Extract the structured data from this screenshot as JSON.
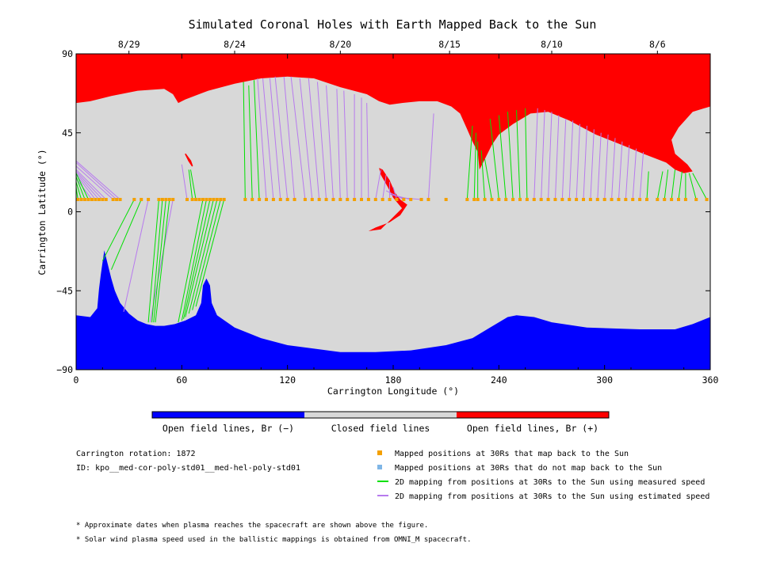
{
  "chart_data": {
    "type": "scatter",
    "title": "Simulated Coronal Holes with Earth Mapped Back to the Sun",
    "xlabel": "Carrington Longitude (°)",
    "ylabel": "Carrington Latitude (°)",
    "xlim": [
      0,
      360
    ],
    "ylim": [
      -90,
      90
    ],
    "x_ticks": [
      0,
      60,
      120,
      180,
      240,
      300,
      360
    ],
    "y_ticks": [
      -90,
      -45,
      0,
      45,
      90
    ],
    "x_tick_labels": [
      "0",
      "60",
      "120",
      "180",
      "240",
      "300",
      "360"
    ],
    "y_tick_labels": [
      "−90",
      "−45",
      "0",
      "45",
      "90"
    ],
    "date_axis": [
      {
        "label": "8/29",
        "lon": 30
      },
      {
        "label": "8/24",
        "lon": 90
      },
      {
        "label": "8/20",
        "lon": 150
      },
      {
        "label": "8/15",
        "lon": 212
      },
      {
        "label": "8/10",
        "lon": 270
      },
      {
        "label": "8/6",
        "lon": 330
      }
    ],
    "colors": {
      "open_positive": "#ff0000",
      "open_negative": "#0000ff",
      "closed": "#d8d8d8",
      "mapped_point": "#f4a000",
      "unmapped_point": "#7fb6e6",
      "measured_speed": "#00e000",
      "estimated_speed": "#b77aee"
    },
    "regions": {
      "north_open_positive_boundary": [
        [
          0,
          62
        ],
        [
          8,
          63
        ],
        [
          20,
          66
        ],
        [
          35,
          69
        ],
        [
          50,
          70
        ],
        [
          55,
          67
        ],
        [
          58,
          62
        ],
        [
          62,
          64
        ],
        [
          75,
          69
        ],
        [
          90,
          73
        ],
        [
          105,
          76
        ],
        [
          120,
          77
        ],
        [
          135,
          76
        ],
        [
          150,
          71
        ],
        [
          165,
          67
        ],
        [
          172,
          63
        ],
        [
          178,
          61
        ],
        [
          185,
          62
        ],
        [
          195,
          63
        ],
        [
          205,
          63
        ],
        [
          213,
          60
        ],
        [
          218,
          56
        ],
        [
          222,
          47
        ],
        [
          225,
          40
        ],
        [
          228,
          34
        ],
        [
          229,
          24
        ],
        [
          232,
          30
        ],
        [
          236,
          38
        ],
        [
          240,
          44
        ],
        [
          248,
          50
        ],
        [
          258,
          56
        ],
        [
          268,
          57
        ],
        [
          280,
          52
        ],
        [
          295,
          44
        ],
        [
          310,
          38
        ],
        [
          322,
          33
        ],
        [
          335,
          28
        ],
        [
          340,
          24
        ],
        [
          345,
          22
        ],
        [
          350,
          23
        ],
        [
          347,
          27
        ],
        [
          340,
          33
        ],
        [
          338,
          41
        ],
        [
          342,
          48
        ],
        [
          350,
          57
        ],
        [
          360,
          60
        ]
      ],
      "south_open_negative_boundary": [
        [
          0,
          -59
        ],
        [
          8,
          -60
        ],
        [
          12,
          -55
        ],
        [
          13,
          -44
        ],
        [
          14,
          -36
        ],
        [
          15,
          -29
        ],
        [
          16,
          -22
        ],
        [
          18,
          -30
        ],
        [
          20,
          -38
        ],
        [
          22,
          -45
        ],
        [
          25,
          -52
        ],
        [
          30,
          -58
        ],
        [
          35,
          -62
        ],
        [
          40,
          -64
        ],
        [
          45,
          -65
        ],
        [
          50,
          -65
        ],
        [
          56,
          -64
        ],
        [
          62,
          -62
        ],
        [
          68,
          -59
        ],
        [
          71,
          -52
        ],
        [
          72,
          -42
        ],
        [
          74,
          -38
        ],
        [
          76,
          -42
        ],
        [
          77,
          -52
        ],
        [
          80,
          -59
        ],
        [
          90,
          -66
        ],
        [
          105,
          -72
        ],
        [
          120,
          -76
        ],
        [
          150,
          -80
        ],
        [
          170,
          -80
        ],
        [
          190,
          -79
        ],
        [
          210,
          -76
        ],
        [
          225,
          -72
        ],
        [
          235,
          -66
        ],
        [
          245,
          -60
        ],
        [
          250,
          -59
        ],
        [
          260,
          -60
        ],
        [
          270,
          -63
        ],
        [
          290,
          -66
        ],
        [
          320,
          -67
        ],
        [
          340,
          -67
        ],
        [
          350,
          -64
        ],
        [
          360,
          -60
        ]
      ],
      "mid_positive_hole": [
        [
          173,
          -10
        ],
        [
          185,
          2
        ],
        [
          180,
          8
        ],
        [
          177,
          14
        ],
        [
          173,
          21
        ],
        [
          172,
          25
        ],
        [
          174,
          24
        ],
        [
          178,
          18
        ],
        [
          181,
          11
        ],
        [
          184,
          7
        ],
        [
          188,
          4
        ],
        [
          184,
          -2
        ],
        [
          178,
          -6
        ],
        [
          170,
          -9
        ],
        [
          166,
          -11
        ]
      ],
      "small_positive_hole": [
        [
          62,
          33
        ],
        [
          65,
          29
        ],
        [
          66,
          26
        ],
        [
          64,
          29
        ]
      ]
    },
    "series": [
      {
        "name": "Mapped positions at 30Rs that map back to the Sun",
        "lat": 7,
        "lon": [
          1,
          3,
          5,
          7,
          9,
          11,
          13,
          15,
          17,
          21,
          23,
          25,
          33,
          37,
          41,
          47,
          49,
          51,
          53,
          55,
          63,
          66,
          68,
          70,
          72,
          74,
          76,
          78,
          80,
          82,
          84,
          96,
          100,
          104,
          108,
          112,
          116,
          120,
          124,
          130,
          134,
          138,
          142,
          146,
          150,
          154,
          158,
          162,
          166,
          170,
          174,
          178,
          182,
          186,
          190,
          196,
          200,
          210,
          222,
          226,
          228,
          232,
          236,
          240,
          244,
          248,
          252,
          256,
          260,
          264,
          268,
          272,
          276,
          280,
          284,
          288,
          292,
          296,
          300,
          304,
          308,
          312,
          316,
          320,
          324,
          330,
          334,
          338,
          342,
          346,
          352,
          358
        ]
      },
      {
        "name": "2D mapping from positions at 30Rs to the Sun using measured speed",
        "segments": [
          [
            1,
            7,
            0,
            14
          ],
          [
            3,
            7,
            0,
            17
          ],
          [
            5,
            7,
            0,
            20
          ],
          [
            7,
            7,
            0,
            22
          ],
          [
            33,
            7,
            15,
            -28
          ],
          [
            37,
            7,
            20,
            -33
          ],
          [
            47,
            7,
            41,
            -63
          ],
          [
            49,
            7,
            43,
            -63
          ],
          [
            51,
            7,
            44,
            -63
          ],
          [
            53,
            7,
            45,
            -63
          ],
          [
            72,
            7,
            58,
            -63
          ],
          [
            74,
            7,
            60,
            -62
          ],
          [
            76,
            7,
            61,
            -61
          ],
          [
            78,
            7,
            62,
            -60
          ],
          [
            80,
            7,
            64,
            -58
          ],
          [
            82,
            7,
            66,
            -56
          ],
          [
            84,
            7,
            68,
            -54
          ],
          [
            66,
            7,
            64,
            24
          ],
          [
            68,
            7,
            65,
            24
          ],
          [
            96,
            7,
            95,
            74
          ],
          [
            100,
            7,
            98,
            72
          ],
          [
            104,
            7,
            101,
            75
          ],
          [
            222,
            7,
            225,
            49
          ],
          [
            226,
            7,
            227,
            45
          ],
          [
            228,
            7,
            228,
            40
          ],
          [
            232,
            7,
            230,
            35
          ],
          [
            236,
            7,
            232,
            30
          ],
          [
            240,
            7,
            235,
            53
          ],
          [
            244,
            7,
            240,
            55
          ],
          [
            248,
            7,
            245,
            57
          ],
          [
            252,
            7,
            250,
            58
          ],
          [
            256,
            7,
            255,
            59
          ],
          [
            324,
            7,
            325,
            23
          ],
          [
            330,
            7,
            333,
            23
          ],
          [
            334,
            7,
            336,
            24
          ],
          [
            338,
            7,
            340,
            24
          ],
          [
            342,
            7,
            344,
            23
          ],
          [
            346,
            7,
            346,
            22
          ],
          [
            352,
            7,
            348,
            22
          ],
          [
            358,
            7,
            350,
            22
          ]
        ]
      },
      {
        "name": "2D mapping from positions at 30Rs to the Sun using estimated speed",
        "segments": [
          [
            9,
            7,
            0,
            19
          ],
          [
            11,
            7,
            0,
            21
          ],
          [
            13,
            7,
            0,
            22
          ],
          [
            15,
            7,
            0,
            23
          ],
          [
            17,
            7,
            0,
            24
          ],
          [
            21,
            7,
            0,
            26
          ],
          [
            23,
            7,
            0,
            28
          ],
          [
            25,
            7,
            0,
            29
          ],
          [
            41,
            7,
            27,
            -57
          ],
          [
            55,
            7,
            42,
            -63
          ],
          [
            63,
            7,
            60,
            27
          ],
          [
            108,
            7,
            103,
            76
          ],
          [
            112,
            7,
            106,
            76
          ],
          [
            116,
            7,
            110,
            76
          ],
          [
            120,
            7,
            113,
            77
          ],
          [
            124,
            7,
            118,
            77
          ],
          [
            130,
            7,
            122,
            77
          ],
          [
            134,
            7,
            127,
            76
          ],
          [
            138,
            7,
            132,
            76
          ],
          [
            142,
            7,
            137,
            74
          ],
          [
            146,
            7,
            142,
            72
          ],
          [
            150,
            7,
            148,
            70
          ],
          [
            154,
            7,
            152,
            69
          ],
          [
            158,
            7,
            158,
            67
          ],
          [
            162,
            7,
            162,
            65
          ],
          [
            166,
            7,
            165,
            62
          ],
          [
            170,
            7,
            173,
            24
          ],
          [
            174,
            7,
            176,
            21
          ],
          [
            178,
            7,
            178,
            17
          ],
          [
            182,
            7,
            180,
            14
          ],
          [
            186,
            7,
            176,
            12
          ],
          [
            190,
            7,
            178,
            10
          ],
          [
            196,
            7,
            184,
            8
          ],
          [
            200,
            7,
            203,
            56
          ],
          [
            260,
            7,
            262,
            59
          ],
          [
            264,
            7,
            266,
            58
          ],
          [
            268,
            7,
            270,
            57
          ],
          [
            272,
            7,
            274,
            55
          ],
          [
            276,
            7,
            278,
            53
          ],
          [
            280,
            7,
            282,
            52
          ],
          [
            284,
            7,
            286,
            50
          ],
          [
            288,
            7,
            290,
            49
          ],
          [
            292,
            7,
            294,
            47
          ],
          [
            296,
            7,
            298,
            45
          ],
          [
            300,
            7,
            302,
            44
          ],
          [
            304,
            7,
            306,
            42
          ],
          [
            308,
            7,
            310,
            40
          ],
          [
            312,
            7,
            314,
            38
          ],
          [
            316,
            7,
            318,
            36
          ],
          [
            320,
            7,
            322,
            34
          ]
        ]
      }
    ]
  },
  "colorbar": {
    "labels": [
      "Open field lines, Br (−)",
      "Closed field lines",
      "Open field lines, Br (+)"
    ]
  },
  "info": {
    "rotation": "Carrington rotation: 1872",
    "id": "ID: kpo__med-cor-poly-std01__med-hel-poly-std01"
  },
  "legend": {
    "items": [
      {
        "symbol": "square",
        "color": "#f4a000",
        "text": "Mapped positions at 30Rs that map back to the Sun"
      },
      {
        "symbol": "square",
        "color": "#7fb6e6",
        "text": "Mapped positions at 30Rs that do not map back to the Sun"
      },
      {
        "symbol": "line",
        "color": "#00e000",
        "text": "2D mapping from positions at 30Rs to the Sun using measured speed"
      },
      {
        "symbol": "line",
        "color": "#b77aee",
        "text": "2D mapping from positions at 30Rs to the Sun using estimated speed"
      }
    ]
  },
  "footnotes": [
    "* Approximate dates when plasma reaches the spacecraft are shown above the figure.",
    "* Solar wind plasma speed used in the ballistic mappings is obtained from OMNI_M spacecraft."
  ]
}
